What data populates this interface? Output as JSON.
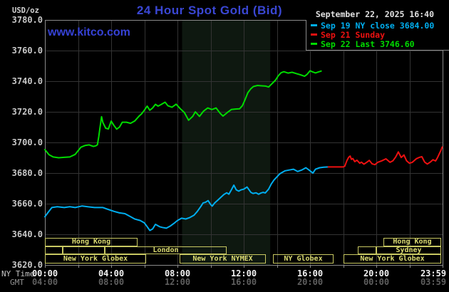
{
  "header": {
    "unit_label": "USD/oz",
    "title": "24 Hour Spot Gold (Bid)",
    "watermark": "www.kitco.com",
    "datetime": "September 22, 2025  16:40"
  },
  "legend": {
    "rows": [
      {
        "label": "Sep 19 NY close 3684.00",
        "color": "#00AEEF"
      },
      {
        "label": "Sep 21 Sunday",
        "color": "#EE1111"
      },
      {
        "label": "Sep 22 Last 3746.60",
        "color": "#00DC00"
      }
    ]
  },
  "axis": {
    "ny_label": "NY Time",
    "gmt_label": "GMT",
    "ny_ticks": [
      "00:00",
      "04:00",
      "08:00",
      "12:00",
      "16:00",
      "20:00",
      "23:59"
    ],
    "gmt_ticks": [
      "04:00",
      "08:00",
      "12:00",
      "16:00",
      "20:00",
      "00:00",
      "03:59"
    ],
    "y_ticks": [
      "3780.0",
      "3760.0",
      "3740.0",
      "3720.0",
      "3700.0",
      "3680.0",
      "3660.0",
      "3640.0",
      "3620.0"
    ]
  },
  "chart_data": {
    "type": "line",
    "title": "24 Hour Spot Gold (Bid)",
    "ylabel": "USD/oz",
    "ylim": [
      3620,
      3780
    ],
    "y_tick_step": 20,
    "x_range_hours": [
      0,
      24
    ],
    "x_tick_step_hours": 2,
    "grid": true,
    "grid_color": "#333333",
    "border_color": "#8A8A8A",
    "nymex_band_hours": [
      8.28,
      13.6
    ],
    "band_color": "#0E1810",
    "last_price": 3746.6,
    "prev_close": 3684.0,
    "series": [
      {
        "name": "Sep 19 NY close 3684.00",
        "color": "#00AEEF",
        "points": [
          [
            0,
            3651.5
          ],
          [
            0.17,
            3654
          ],
          [
            0.42,
            3657.5
          ],
          [
            0.75,
            3658
          ],
          [
            1.17,
            3657.5
          ],
          [
            1.5,
            3658
          ],
          [
            1.83,
            3657.5
          ],
          [
            2.25,
            3658.5
          ],
          [
            2.58,
            3658
          ],
          [
            3,
            3657.5
          ],
          [
            3.5,
            3657.5
          ],
          [
            3.75,
            3656.5
          ],
          [
            4.17,
            3655
          ],
          [
            4.5,
            3654
          ],
          [
            4.83,
            3653.5
          ],
          [
            5.17,
            3651.5
          ],
          [
            5.42,
            3650
          ],
          [
            5.75,
            3649
          ],
          [
            6,
            3647.5
          ],
          [
            6.17,
            3645
          ],
          [
            6.33,
            3642.5
          ],
          [
            6.5,
            3643.5
          ],
          [
            6.67,
            3646.5
          ],
          [
            6.92,
            3645
          ],
          [
            7.08,
            3644.5
          ],
          [
            7.33,
            3644
          ],
          [
            7.58,
            3645.5
          ],
          [
            7.83,
            3647.5
          ],
          [
            8,
            3649
          ],
          [
            8.25,
            3650.5
          ],
          [
            8.5,
            3650
          ],
          [
            8.75,
            3651
          ],
          [
            9,
            3652.5
          ],
          [
            9.2,
            3655
          ],
          [
            9.4,
            3658
          ],
          [
            9.55,
            3660.5
          ],
          [
            9.7,
            3661
          ],
          [
            9.85,
            3662
          ],
          [
            10,
            3659.5
          ],
          [
            10.1,
            3658.4
          ],
          [
            10.25,
            3660.5
          ],
          [
            10.4,
            3662
          ],
          [
            10.6,
            3664
          ],
          [
            10.8,
            3666
          ],
          [
            10.97,
            3667.1
          ],
          [
            11.1,
            3666.2
          ],
          [
            11.25,
            3669
          ],
          [
            11.4,
            3672.1
          ],
          [
            11.55,
            3669
          ],
          [
            11.7,
            3668.2
          ],
          [
            11.83,
            3669
          ],
          [
            12,
            3669.5
          ],
          [
            12.2,
            3670.9
          ],
          [
            12.43,
            3667.4
          ],
          [
            12.56,
            3666.7
          ],
          [
            12.75,
            3667.1
          ],
          [
            12.9,
            3666.2
          ],
          [
            13.05,
            3667
          ],
          [
            13.17,
            3667.4
          ],
          [
            13.3,
            3667
          ],
          [
            13.5,
            3669.5
          ],
          [
            13.67,
            3673
          ],
          [
            13.83,
            3675.5
          ],
          [
            14,
            3677.5
          ],
          [
            14.17,
            3679.5
          ],
          [
            14.33,
            3680.5
          ],
          [
            14.5,
            3681.5
          ],
          [
            14.75,
            3682
          ],
          [
            15,
            3682.5
          ],
          [
            15.25,
            3681
          ],
          [
            15.5,
            3682
          ],
          [
            15.75,
            3683.5
          ],
          [
            16,
            3681.5
          ],
          [
            16.17,
            3680
          ],
          [
            16.33,
            3682.5
          ],
          [
            16.58,
            3683.5
          ],
          [
            16.83,
            3683.8
          ],
          [
            17.1,
            3684
          ]
        ]
      },
      {
        "name": "Sep 21 Sunday",
        "color": "#EE1111",
        "points": [
          [
            17.1,
            3684
          ],
          [
            18,
            3684
          ],
          [
            18.1,
            3684.5
          ],
          [
            18.22,
            3688
          ],
          [
            18.33,
            3690.3
          ],
          [
            18.42,
            3691.1
          ],
          [
            18.5,
            3689
          ],
          [
            18.58,
            3689.5
          ],
          [
            18.7,
            3687.5
          ],
          [
            18.83,
            3688.4
          ],
          [
            19,
            3686.4
          ],
          [
            19.1,
            3687.1
          ],
          [
            19.25,
            3685.8
          ],
          [
            19.42,
            3687
          ],
          [
            19.58,
            3688.3
          ],
          [
            19.75,
            3686
          ],
          [
            19.92,
            3685.5
          ],
          [
            20.08,
            3687
          ],
          [
            20.33,
            3688
          ],
          [
            20.58,
            3689.3
          ],
          [
            20.83,
            3687
          ],
          [
            21,
            3688
          ],
          [
            21.17,
            3690.5
          ],
          [
            21.33,
            3693.8
          ],
          [
            21.5,
            3690.2
          ],
          [
            21.67,
            3691.8
          ],
          [
            21.83,
            3688
          ],
          [
            22,
            3686.4
          ],
          [
            22.17,
            3687
          ],
          [
            22.42,
            3689.4
          ],
          [
            22.58,
            3690.2
          ],
          [
            22.75,
            3690.7
          ],
          [
            22.92,
            3687.1
          ],
          [
            23.08,
            3685.9
          ],
          [
            23.25,
            3687.1
          ],
          [
            23.42,
            3688.7
          ],
          [
            23.58,
            3687.9
          ],
          [
            23.7,
            3690.2
          ],
          [
            23.8,
            3692.6
          ],
          [
            23.9,
            3694.9
          ],
          [
            23.98,
            3697
          ]
        ]
      },
      {
        "name": "Sep 22 Last 3746.60",
        "color": "#00DC00",
        "points": [
          [
            0,
            3695.3
          ],
          [
            0.25,
            3692
          ],
          [
            0.5,
            3690.5
          ],
          [
            0.83,
            3690
          ],
          [
            1.17,
            3690.3
          ],
          [
            1.5,
            3690.5
          ],
          [
            1.83,
            3692.2
          ],
          [
            2.17,
            3696.9
          ],
          [
            2.42,
            3698
          ],
          [
            2.67,
            3698.4
          ],
          [
            2.92,
            3697.4
          ],
          [
            3.08,
            3697.8
          ],
          [
            3.17,
            3698.5
          ],
          [
            3.25,
            3703.9
          ],
          [
            3.33,
            3710
          ],
          [
            3.42,
            3716.8
          ],
          [
            3.5,
            3713
          ],
          [
            3.67,
            3709.3
          ],
          [
            3.83,
            3708.8
          ],
          [
            4,
            3713.9
          ],
          [
            4.17,
            3711
          ],
          [
            4.33,
            3708.7
          ],
          [
            4.5,
            3710
          ],
          [
            4.67,
            3713.2
          ],
          [
            4.92,
            3713.2
          ],
          [
            5.17,
            3712.5
          ],
          [
            5.42,
            3714
          ],
          [
            5.67,
            3717
          ],
          [
            5.83,
            3718.6
          ],
          [
            6,
            3721
          ],
          [
            6.17,
            3723.7
          ],
          [
            6.33,
            3721
          ],
          [
            6.5,
            3722.5
          ],
          [
            6.67,
            3724.9
          ],
          [
            6.83,
            3723.7
          ],
          [
            7,
            3724.7
          ],
          [
            7.25,
            3726.3
          ],
          [
            7.42,
            3724
          ],
          [
            7.67,
            3723
          ],
          [
            7.92,
            3725
          ],
          [
            8.17,
            3722
          ],
          [
            8.42,
            3719.5
          ],
          [
            8.67,
            3714.5
          ],
          [
            8.92,
            3717
          ],
          [
            9.08,
            3720
          ],
          [
            9.33,
            3717
          ],
          [
            9.58,
            3720.5
          ],
          [
            9.83,
            3722.5
          ],
          [
            10.08,
            3721.5
          ],
          [
            10.33,
            3722.5
          ],
          [
            10.58,
            3719
          ],
          [
            10.75,
            3717.2
          ],
          [
            11,
            3719.5
          ],
          [
            11.25,
            3721.5
          ],
          [
            11.5,
            3721.8
          ],
          [
            11.75,
            3722
          ],
          [
            11.92,
            3724
          ],
          [
            12.08,
            3728
          ],
          [
            12.25,
            3732.5
          ],
          [
            12.42,
            3735
          ],
          [
            12.58,
            3736.5
          ],
          [
            12.83,
            3737.2
          ],
          [
            13.08,
            3737
          ],
          [
            13.33,
            3736.8
          ],
          [
            13.5,
            3736.2
          ],
          [
            13.67,
            3738
          ],
          [
            13.92,
            3740.7
          ],
          [
            14.08,
            3743.5
          ],
          [
            14.25,
            3745.5
          ],
          [
            14.42,
            3746.2
          ],
          [
            14.67,
            3745.3
          ],
          [
            14.92,
            3745.8
          ],
          [
            15.17,
            3745
          ],
          [
            15.42,
            3744.2
          ],
          [
            15.67,
            3743.2
          ],
          [
            15.83,
            3744.5
          ],
          [
            16,
            3746.8
          ],
          [
            16.17,
            3746
          ],
          [
            16.33,
            3745.4
          ],
          [
            16.5,
            3746
          ],
          [
            16.67,
            3746.6
          ]
        ]
      }
    ],
    "sessions": {
      "rows": [
        {
          "boxes": [
            {
              "label": "Hong Kong",
              "from": 0,
              "to": 5.6
            },
            {
              "label": "Hong Kong",
              "from": 20.45,
              "to": 23.9
            }
          ]
        },
        {
          "boxes": [
            {
              "label": "",
              "from": 0,
              "to": 1.08
            },
            {
              "label": "",
              "from": 1.08,
              "to": 3.6
            },
            {
              "label": "London",
              "from": 3.6,
              "to": 10.97
            },
            {
              "label": "",
              "from": 18.9,
              "to": 20.0
            },
            {
              "label": "Sydney",
              "from": 20.0,
              "to": 23.9
            }
          ]
        },
        {
          "boxes": [
            {
              "label": "New York Globex",
              "from": 0,
              "to": 6.1
            },
            {
              "label": "New York NYMEX",
              "from": 8.13,
              "to": 13.33
            },
            {
              "label": "NY Globex",
              "from": 13.76,
              "to": 17.4
            },
            {
              "label": "New York Globex",
              "from": 18.02,
              "to": 23.9
            }
          ]
        }
      ]
    }
  }
}
